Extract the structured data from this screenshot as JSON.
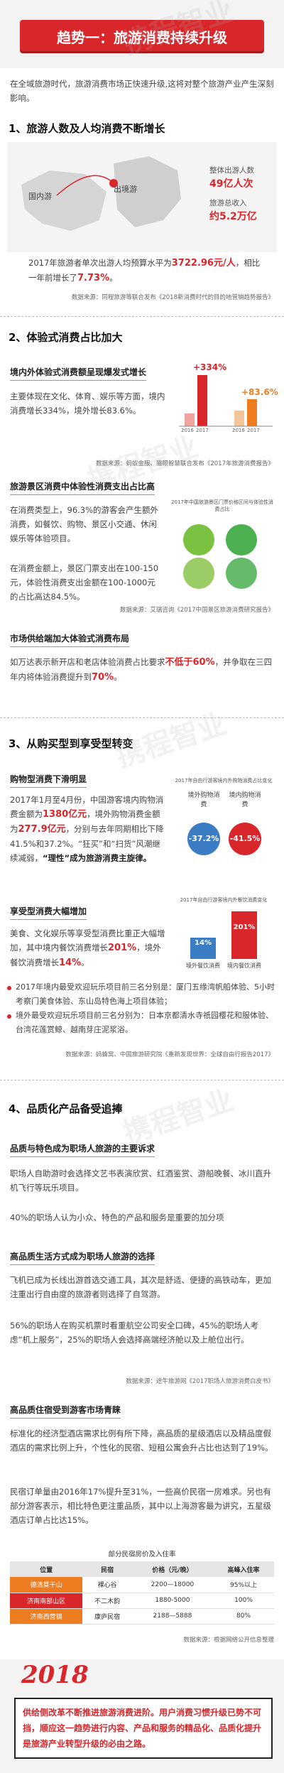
{
  "header": {
    "title": "趋势一：旅游消费持续升级",
    "watermark": "携程智业"
  },
  "intro": "在全域旅游时代，旅游消费市场正快速升级,这将对整个旅游产业产生深刻影响。",
  "sections": [
    {
      "title": "1、旅游人数及人均消费不断增长",
      "map": {
        "domestic": "国内游",
        "outbound": "出境游",
        "people_label": "整体出游人数",
        "people_value": "49亿人次",
        "income_label": "旅游总收入",
        "income_value": "约5.2万亿"
      },
      "text": [
        "2017年旅游者单次出游人均预算水平为",
        "3722.96元/人",
        "，相比一年前增长了",
        "7.73%",
        "。"
      ],
      "source": "数据来源：同程旅游等联合发布《2018新消费时代的目的地营销趋势报告》"
    },
    {
      "title": "2、体验式消费占比加大",
      "blocks": [
        {
          "heading": "境内外体验式消费额呈现爆发式增长",
          "text": "主要体现在文化、体育、娱乐等方面，境内消费增长334%，境外增长83.6%。",
          "chart": {
            "labels": [
              "+334%",
              "+83.6%"
            ],
            "years": [
              "2016",
              "2017"
            ]
          },
          "source": "数据来源：蚂蚁金服、猫眼智慧联合发布《2017年旅游消费报告》"
        },
        {
          "heading": "旅游景区消费中体验性消费支出占比高",
          "text": [
            "在消费类型上，96.3%的游客会产生额外消费，如餐饮、购物、景区小交通、休闲娱乐等体验项目。",
            "在消费金额上，景区门票支出在100-150元，体验性消费支出金额在100-1000元的占比高达84.5%。"
          ],
          "chart": {
            "title": "2017年中国旅游景区门票价格区间与体验性消费占比"
          },
          "source": "数据来源：艾瑞咨询《2017中国景区旅游消费研究报告》"
        },
        {
          "heading": "市场供给端加大体验式消费布局",
          "text": [
            "如万达表示新开店和老店体验消费占比要求",
            "不低于60%",
            "，并争取在三四年内将体验消费提升到",
            "70%",
            "。"
          ]
        }
      ]
    },
    {
      "title": "3、从购买型到享受型转变",
      "blocks": [
        {
          "heading": "购物型消费下滑明显",
          "text": [
            "2017年1月至4月份，中国游客境内购物消费金额为",
            "1380亿元",
            "，境外购物消费金额为",
            "277.9亿元",
            "，分别与去年同期相比下降41.5%和37.2%。“狂买”和“扫货”风潮继续减弱，",
            "“理性”",
            "成为旅游消费主旋律。"
          ],
          "chart": {
            "title": "2017年自由行游客境内外购物消费占比变化",
            "labels": [
              "境外购物消费",
              "境内购物消费"
            ],
            "values": [
              "-37.2%",
              "-41.5%"
            ]
          }
        },
        {
          "heading": "享受型消费大幅增加",
          "text": [
            "美食、文化娱乐等享受型消费比重正大幅增加，其中境内餐饮消费增长",
            "201%",
            "，境外餐饮消费增长",
            "14%",
            "。"
          ],
          "chart": {
            "title": "2017年自由行游客境内外餐饮消费变化",
            "labels": [
              "境外餐饮消费",
              "境内餐饮消费"
            ],
            "values": [
              "14%",
              "201%"
            ]
          }
        }
      ],
      "bullets": [
        "2017年境内最受欢迎玩乐项目前三名分别是：厦门五缘湾帆船体验、5小时考察门美食体验、东山岛特色海上项目体验；",
        "境外最受欢迎玩乐项目前三名分别为：日本京都清水寺祇园樱花和服体验、台湾花莲赏鲸、越南芽庄泥浆浴。"
      ],
      "source": "数据来源：蚂蜂窝、中国旅游研究院《重新发现世界：全球自由行报告2017》"
    },
    {
      "title": "4、品质化产品备受追捧",
      "blocks": [
        {
          "heading": "品质与特色成为职场人旅游的主要诉求",
          "text": [
            "职场人自助游时会选择文艺书表演欣赏、红酒鉴赏、游船晚餐、冰川直升机飞行等玩乐项目。",
            "40%的职场人认为小众、特色的产品和服务是重要的加分项"
          ]
        },
        {
          "heading": "高品质生活方式成为职场人旅游的选择",
          "text": [
            "飞机已成为长线出游首选交通工具，其次是舒适、便捷的高铁动车，更加注重出行自由度的旅游者则选择了自驾游。",
            "56%的职场人在购买机票时看重航空公司安全口碑，45%的职场人考虑“机上服务”，25%的职场人会选择高端经济舱以及上舱位出行。"
          ],
          "source": "数据来源：途牛旅游网《2017职场人旅游消费白皮书》"
        },
        {
          "heading": "高品质住宿受到游客市场青睐",
          "text": [
            "标准化的经济型酒店需求比例有所下降，高品质的星级酒店以及精品度假酒店的需求比例上升，个性化的民宿、短租公寓会升占比也达到了19%。",
            "民宿订单量由2016年17%提升至31%，一些高价民宿一房难求。另也有部分游客表示，相比特色更注重品质，其中以上海游客最为讲究，五星级酒店订单占比达15%。"
          ],
          "table": {
            "title": "部分民宿房价及入住率",
            "header": [
              "位置",
              "民宿",
              "价格（元/晚）",
              "高峰入住率"
            ],
            "rows": [
              [
                "德清莫干山",
                "裸心谷",
                "2200—18000",
                "95%以上"
              ],
              [
                "济南南部山区",
                "不二木韵",
                "1880-5000",
                "100%"
              ],
              [
                "济南西营镇",
                "康庐民宿",
                "2188—5888",
                "80%"
              ]
            ]
          },
          "source": "数据来源：根据网络公开信息整理"
        }
      ]
    }
  ],
  "closing": {
    "year": "2018",
    "text": "供给侧改革不断推进旅游消费进阶。用户消费习惯升级已势不可挡，顺应这一趋势进行内容、产品和服务的精品化、品质化提升是旅游产业转型升级的必由之路。"
  }
}
